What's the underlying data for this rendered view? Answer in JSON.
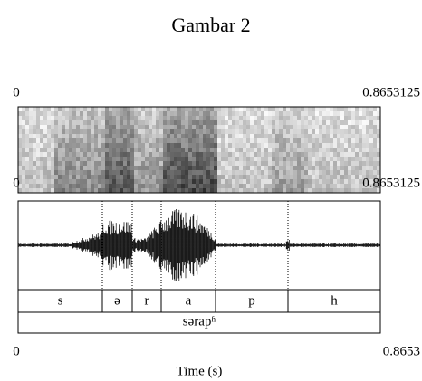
{
  "title": "Gambar 2",
  "spectrogram": {
    "time_start": "0",
    "time_end": "0.8653125",
    "lower_left": "0",
    "lower_right": "0.8653125"
  },
  "tiers": [
    {
      "intervals": [
        "s",
        "ə",
        "r",
        "a",
        "p",
        "h"
      ]
    },
    {
      "intervals": [
        "sərapʱ"
      ]
    }
  ],
  "axis": {
    "start": "0",
    "end": "0.8653",
    "label": "Time (s)"
  }
}
